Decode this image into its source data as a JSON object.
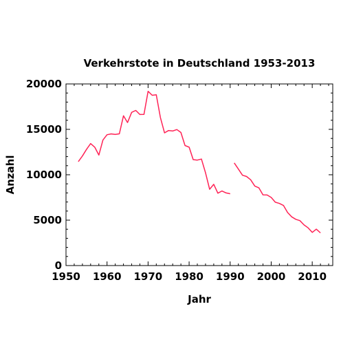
{
  "chart_data": {
    "type": "line",
    "title": "Verkehrstote in Deutschland 1953-2013",
    "xlabel": "Jahr",
    "ylabel": "Anzahl",
    "xlim": [
      1950,
      2015
    ],
    "ylim": [
      0,
      20000
    ],
    "xticks": [
      1950,
      1960,
      1970,
      1980,
      1990,
      2000,
      2010
    ],
    "yticks": [
      0,
      5000,
      10000,
      15000,
      20000
    ],
    "grid": false,
    "line_color": "#ff2255",
    "series": [
      {
        "x": [
          1953,
          1954,
          1955,
          1956,
          1957,
          1958,
          1959,
          1960,
          1961,
          1962,
          1963,
          1964,
          1965,
          1966,
          1967,
          1968,
          1969,
          1970,
          1971,
          1972,
          1973,
          1974,
          1975,
          1976,
          1977,
          1978,
          1979,
          1980,
          1981,
          1982,
          1983,
          1984,
          1985,
          1986,
          1987,
          1988,
          1989,
          1990
        ],
        "y": [
          11450,
          12070,
          12790,
          13430,
          13040,
          12170,
          13820,
          14410,
          14500,
          14440,
          14510,
          16490,
          15750,
          16870,
          17080,
          16640,
          16650,
          19190,
          18750,
          18810,
          16300,
          14610,
          14870,
          14820,
          14980,
          14660,
          13220,
          13040,
          11670,
          11610,
          11730,
          10200,
          8400,
          8950,
          7970,
          8210,
          8000,
          7910
        ]
      },
      {
        "x": [
          1991,
          1992,
          1993,
          1994,
          1995,
          1996,
          1997,
          1998,
          1999,
          2000,
          2001,
          2002,
          2003,
          2004,
          2005,
          2006,
          2007,
          2008,
          2009,
          2010,
          2011,
          2012
        ],
        "y": [
          11300,
          10630,
          9950,
          9810,
          9450,
          8760,
          8550,
          7790,
          7770,
          7500,
          6980,
          6840,
          6610,
          5840,
          5360,
          5090,
          4950,
          4480,
          4150,
          3650,
          4010,
          3600
        ]
      }
    ]
  }
}
